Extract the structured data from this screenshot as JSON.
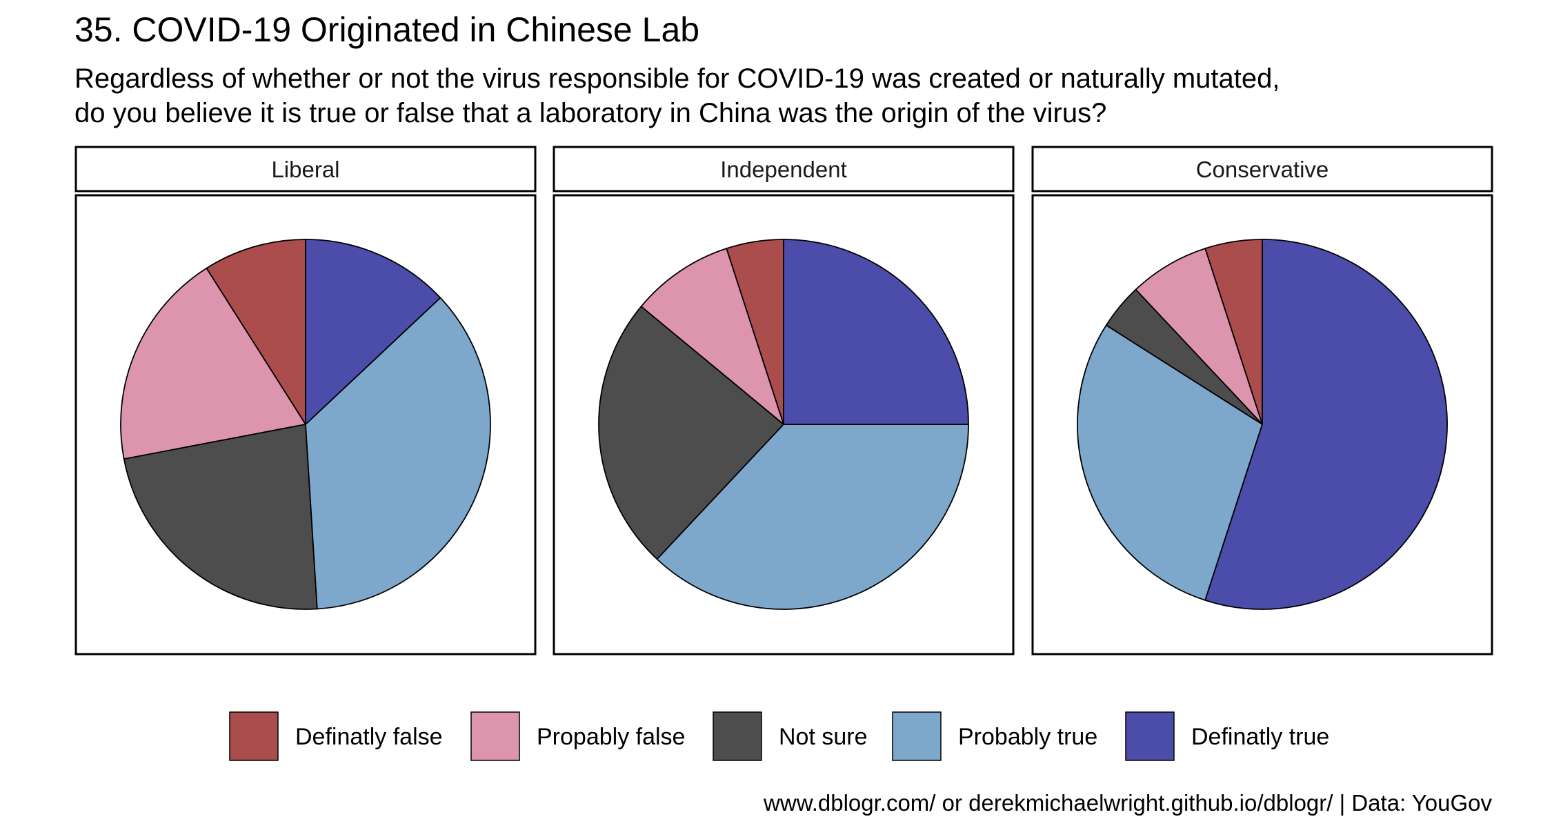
{
  "chart_data": {
    "type": "pie",
    "title": "35. COVID-19 Originated in Chinese Lab",
    "subtitle_lines": [
      "Regardless of whether or not the virus responsible for COVID-19 was created or naturally mutated,",
      "do you believe it is true or false that a laboratory in China was the origin of the virus?"
    ],
    "categories": [
      "Definatly false",
      "Propably false",
      "Not sure",
      "Probably true",
      "Definatly true"
    ],
    "colors": {
      "Definatly false": "#ab4d4d",
      "Propably false": "#dd95ae",
      "Not sure": "#4d4d4d",
      "Probably true": "#7da8cc",
      "Definatly true": "#4c4cab"
    },
    "panels": [
      {
        "label": "Liberal",
        "values": [
          9,
          19,
          23,
          36,
          13
        ]
      },
      {
        "label": "Independent",
        "values": [
          5,
          9,
          24,
          37,
          25
        ]
      },
      {
        "label": "Conservative",
        "values": [
          5,
          7,
          4,
          29,
          55
        ]
      }
    ],
    "legend_position": "bottom",
    "caption": "www.dblogr.com/ or derekmichaelwright.github.io/dblogr/ | Data: YouGov"
  }
}
